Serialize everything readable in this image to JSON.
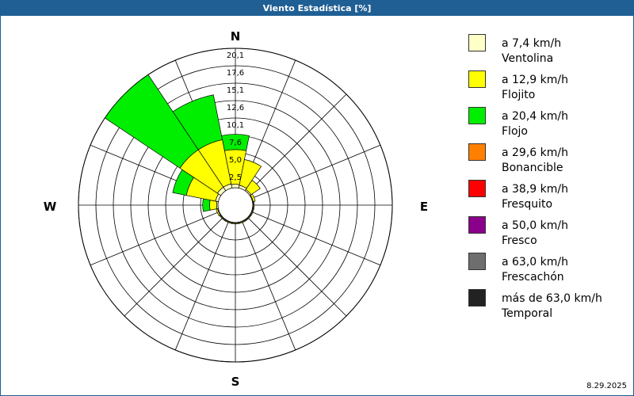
{
  "window": {
    "title": "Viento Estadística [%]"
  },
  "chart_data": {
    "type": "wind-rose",
    "title": "Viento Estadística [%]",
    "directions": [
      "N",
      "NNE",
      "NE",
      "ENE",
      "E",
      "ESE",
      "SE",
      "SSE",
      "S",
      "SSW",
      "SW",
      "WSW",
      "W",
      "WNW",
      "NW",
      "NNW"
    ],
    "compass_labels": {
      "N": "N",
      "E": "E",
      "S": "S",
      "W": "W"
    },
    "radial_ticks": [
      "2,5",
      "5,0",
      "7,6",
      "10,1",
      "12,6",
      "15,1",
      "17,6",
      "20,1"
    ],
    "radial_tick_values": [
      2.5,
      5.0,
      7.6,
      10.1,
      12.6,
      15.1,
      17.6,
      20.1
    ],
    "rmax": 20.1,
    "grid": true,
    "legend_position": "right",
    "series": [
      {
        "name": "a 7,4 km/h",
        "label": "Ventolina",
        "color": "#ffffc8",
        "values": [
          0.5,
          0.4,
          0.2,
          0.1,
          0.1,
          0.1,
          0.1,
          0.1,
          0.1,
          0.1,
          0.1,
          0.1,
          0.2,
          0.4,
          0.6,
          0.6
        ]
      },
      {
        "name": "a 12,9 km/h",
        "label": "Flojito",
        "color": "#ffff00",
        "values": [
          5.0,
          3.8,
          1.6,
          0.3,
          0.1,
          0.1,
          0.1,
          0.1,
          0.1,
          0.1,
          0.1,
          0.2,
          1.0,
          4.3,
          6.5,
          6.5
        ]
      },
      {
        "name": "a 20,4 km/h",
        "label": "Flojo",
        "color": "#00ee00",
        "values": [
          2.2,
          0.0,
          0.0,
          0.0,
          0.0,
          0.0,
          0.0,
          0.0,
          0.0,
          0.0,
          0.0,
          0.0,
          1.0,
          2.0,
          13.0,
          6.6
        ]
      },
      {
        "name": "a 29,6 km/h",
        "label": "Bonancible",
        "color": "#ff8000",
        "values": [
          0,
          0,
          0,
          0,
          0,
          0,
          0,
          0,
          0,
          0,
          0,
          0,
          0,
          0,
          0,
          0
        ]
      },
      {
        "name": "a 38,9 km/h",
        "label": "Fresquito",
        "color": "#ff0000",
        "values": [
          0,
          0,
          0,
          0,
          0,
          0,
          0,
          0,
          0,
          0,
          0,
          0,
          0,
          0,
          0,
          0
        ]
      },
      {
        "name": "a 50,0 km/h",
        "label": "Fresco",
        "color": "#8b008b",
        "values": [
          0,
          0,
          0,
          0,
          0,
          0,
          0,
          0,
          0,
          0,
          0,
          0,
          0,
          0,
          0,
          0
        ]
      },
      {
        "name": "a 63,0 km/h",
        "label": "Frescachón",
        "color": "#6e6e6e",
        "values": [
          0,
          0,
          0,
          0,
          0,
          0,
          0,
          0,
          0,
          0,
          0,
          0,
          0,
          0,
          0,
          0
        ]
      },
      {
        "name": "más de 63,0 km/h",
        "label": "Temporal",
        "color": "#222222",
        "values": [
          0,
          0,
          0,
          0,
          0,
          0,
          0,
          0,
          0,
          0,
          0,
          0,
          0,
          0,
          0,
          0
        ]
      }
    ]
  },
  "footer": {
    "date": "8.29.2025"
  }
}
